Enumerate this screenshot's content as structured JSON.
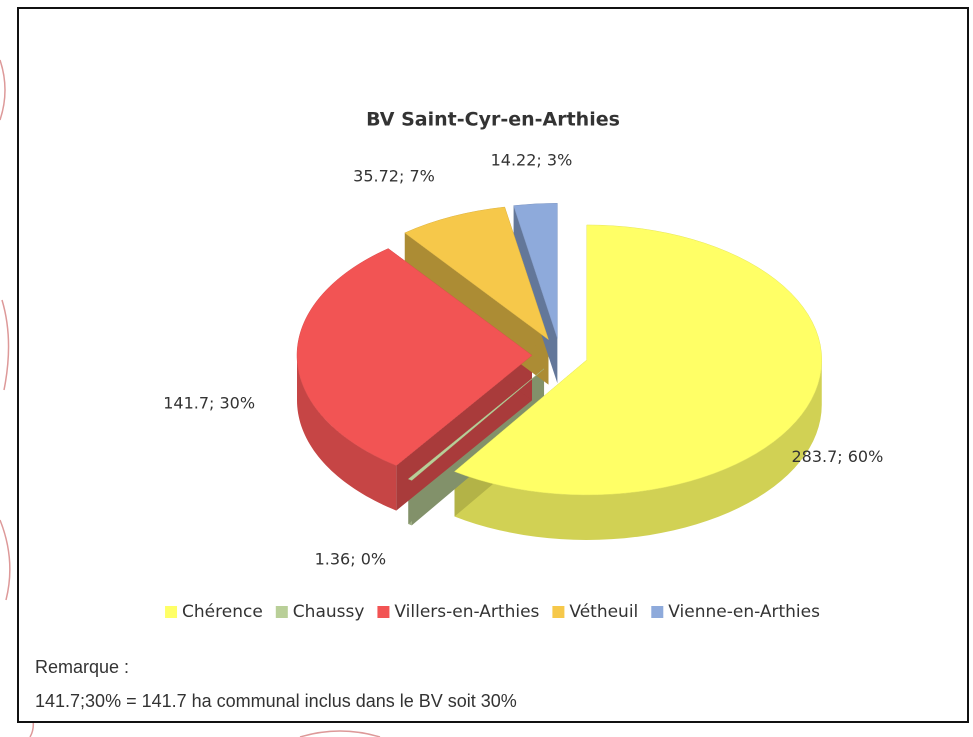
{
  "chart_data": {
    "type": "pie",
    "title": "BV Saint-Cyr-en-Arthies",
    "categories": [
      "Chérence",
      "Chaussy",
      "Villers-en-Arthies",
      "Vétheuil",
      "Vienne-en-Arthies"
    ],
    "values": [
      283.7,
      1.36,
      141.7,
      35.72,
      14.22
    ],
    "value_labels": [
      "283.7; 60%",
      "1.36; 0%",
      "141.7; 30%",
      "35.72; 7%",
      "14.22; 3%"
    ],
    "colors": [
      "#ffff66",
      "#b9cf98",
      "#f25454",
      "#f6c84a",
      "#8eaadb"
    ],
    "legend": "bottom",
    "notes": [
      "Remarque :",
      "141.7;30% = 141.7 ha communal inclus dans le BV soit 30%"
    ]
  }
}
